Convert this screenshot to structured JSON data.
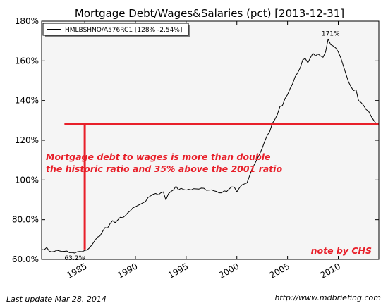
{
  "chart_data": {
    "type": "line",
    "title": "Mortgage Debt/Wages&Salaries (pct) [2013-12-31]",
    "xlabel": "",
    "ylabel": "",
    "xlim": [
      1980.75,
      2014.0
    ],
    "ylim": [
      60,
      180
    ],
    "x_ticks": [
      1985,
      1990,
      1995,
      2000,
      2005,
      2010
    ],
    "x_tick_labels": [
      "1985",
      "1990",
      "1995",
      "2000",
      "2005",
      "2010"
    ],
    "y_ticks": [
      60,
      80,
      100,
      120,
      140,
      160,
      180
    ],
    "y_tick_labels": [
      "60.0%",
      "80.0%",
      "100%",
      "120%",
      "140%",
      "160%",
      "180%"
    ],
    "grid": false,
    "legend_position": "top-left",
    "series": [
      {
        "name": "HMLBSHNO/A576RC1 [128% -2.54%]",
        "color": "#000000",
        "x": [
          1980.75,
          1981.0,
          1981.25,
          1981.5,
          1981.75,
          1982.0,
          1982.25,
          1982.5,
          1982.75,
          1983.0,
          1983.25,
          1983.5,
          1983.75,
          1984.0,
          1984.25,
          1984.5,
          1984.75,
          1985.0,
          1985.25,
          1985.5,
          1985.75,
          1986.0,
          1986.25,
          1986.5,
          1986.75,
          1987.0,
          1987.25,
          1987.5,
          1987.75,
          1988.0,
          1988.25,
          1988.5,
          1988.75,
          1989.0,
          1989.25,
          1989.5,
          1989.75,
          1990.0,
          1990.25,
          1990.5,
          1990.75,
          1991.0,
          1991.25,
          1991.5,
          1991.75,
          1992.0,
          1992.25,
          1992.5,
          1992.75,
          1993.0,
          1993.25,
          1993.5,
          1993.75,
          1994.0,
          1994.25,
          1994.5,
          1994.75,
          1995.0,
          1995.25,
          1995.5,
          1995.75,
          1996.0,
          1996.25,
          1996.5,
          1996.75,
          1997.0,
          1997.25,
          1997.5,
          1997.75,
          1998.0,
          1998.25,
          1998.5,
          1998.75,
          1999.0,
          1999.25,
          1999.5,
          1999.75,
          2000.0,
          2000.25,
          2000.5,
          2000.75,
          2001.0,
          2001.25,
          2001.5,
          2001.75,
          2002.0,
          2002.25,
          2002.5,
          2002.75,
          2003.0,
          2003.25,
          2003.5,
          2003.75,
          2004.0,
          2004.25,
          2004.5,
          2004.75,
          2005.0,
          2005.25,
          2005.5,
          2005.75,
          2006.0,
          2006.25,
          2006.5,
          2006.75,
          2007.0,
          2007.25,
          2007.5,
          2007.75,
          2008.0,
          2008.25,
          2008.5,
          2008.75,
          2009.0,
          2009.25,
          2009.5,
          2009.75,
          2010.0,
          2010.25,
          2010.5,
          2010.75,
          2011.0,
          2011.25,
          2011.5,
          2011.75,
          2012.0,
          2012.25,
          2012.5,
          2012.75,
          2013.0,
          2013.25,
          2013.5,
          2013.75,
          2014.0
        ],
        "y": [
          65.0,
          64.8,
          66.0,
          64.2,
          63.8,
          64.0,
          64.6,
          64.3,
          64.0,
          64.1,
          64.2,
          63.4,
          63.5,
          63.2,
          63.8,
          64.0,
          63.9,
          64.5,
          64.8,
          66.0,
          67.6,
          69.5,
          71.2,
          71.8,
          74.0,
          76.0,
          75.8,
          78.0,
          79.5,
          78.5,
          79.8,
          81.2,
          81.0,
          82.0,
          83.5,
          84.5,
          86.0,
          86.5,
          87.2,
          87.8,
          88.5,
          89.2,
          91.2,
          92.0,
          92.8,
          93.2,
          92.5,
          93.5,
          94.0,
          90.0,
          93.0,
          94.2,
          95.0,
          96.8,
          95.0,
          95.8,
          95.2,
          94.9,
          95.3,
          95.0,
          95.6,
          95.5,
          95.4,
          95.9,
          95.8,
          94.8,
          94.9,
          95.0,
          94.5,
          94.2,
          93.5,
          93.5,
          94.5,
          94.2,
          95.5,
          96.5,
          96.4,
          94.0,
          96.0,
          97.5,
          98.0,
          98.5,
          102.0,
          105.5,
          108.0,
          110.5,
          113.0,
          116.0,
          119.5,
          122.5,
          124.5,
          128.5,
          130.5,
          133.0,
          137.0,
          137.5,
          141.0,
          143.0,
          146.0,
          148.5,
          152.0,
          154.0,
          156.5,
          160.5,
          161.2,
          159.0,
          161.5,
          163.8,
          162.5,
          163.5,
          162.5,
          161.8,
          164.5,
          171.0,
          168.2,
          167.5,
          166.5,
          164.5,
          161.5,
          157.5,
          153.5,
          149.5,
          147.0,
          145.0,
          145.5,
          140.0,
          139.0,
          137.5,
          135.5,
          134.5,
          132.0,
          130.0,
          128.3,
          127.5
        ]
      }
    ],
    "annotations": [
      {
        "text": "171%",
        "x": 2009.25,
        "y": 171
      },
      {
        "text": "63.2%",
        "x": 1984.0,
        "y": 63.2
      }
    ],
    "reference_line": {
      "y": 128,
      "x_start": 1983.0,
      "x_end": 2014.0,
      "color": "#e8202a"
    },
    "reference_vline": {
      "x": 1985.0,
      "y_start": 65,
      "y_end": 128,
      "color": "#e8202a"
    },
    "note_text_lines": [
      "Mortgage debt to wages is more than double",
      "the historic ratio and 35% above the 2001 ratio"
    ],
    "signature": "note by CHS"
  },
  "footer": {
    "last_update": "Last update Mar 28, 2014",
    "url": "http://www.mdbriefing.com"
  }
}
